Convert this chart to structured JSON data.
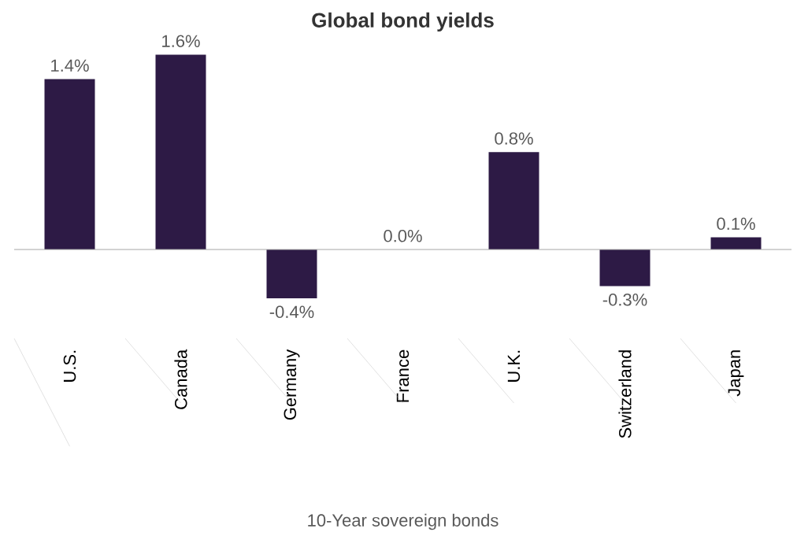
{
  "chart_data": {
    "type": "bar",
    "title": "Global bond yields",
    "xlabel": "10-Year sovereign bonds",
    "categories": [
      "U.S.",
      "Canada",
      "Germany",
      "France",
      "U.K.",
      "Switzerland",
      "Japan"
    ],
    "values": [
      1.4,
      1.6,
      -0.4,
      0.0,
      0.8,
      -0.3,
      0.1
    ],
    "value_labels": [
      "1.4%",
      "1.6%",
      "-0.4%",
      "0.0%",
      "0.8%",
      "-0.3%",
      "0.1%"
    ],
    "color": "#2d1a45"
  }
}
